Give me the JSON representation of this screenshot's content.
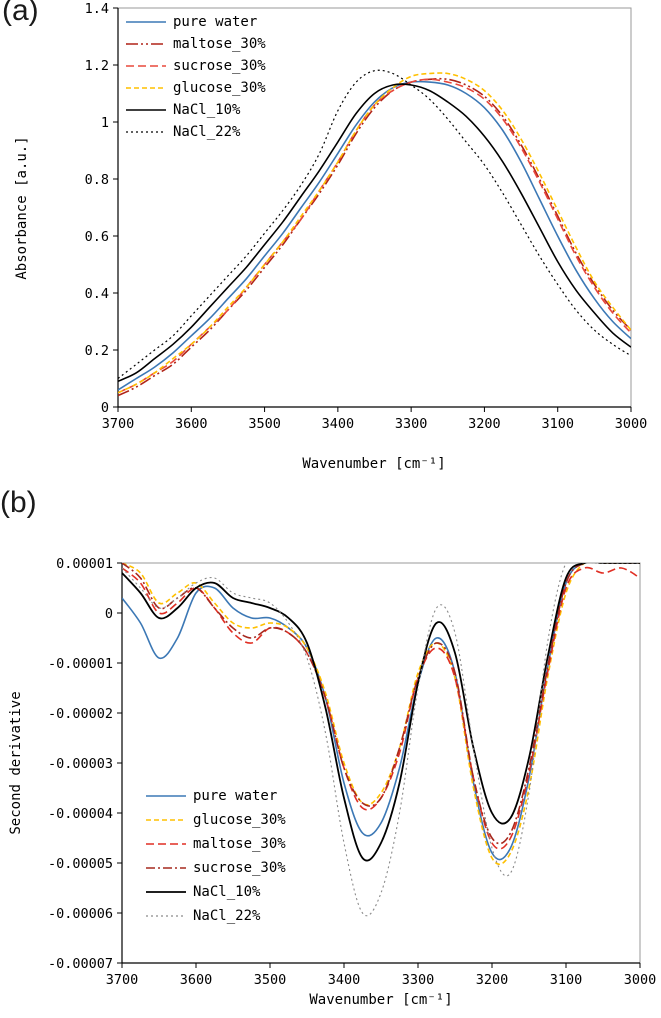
{
  "figure": {
    "background": "#ffffff",
    "panel_a_label": "(a)",
    "panel_b_label": "(b)"
  },
  "chart_data": [
    {
      "type": "line",
      "title": "(a)",
      "xlabel": "Wavenumber [cm⁻¹]",
      "ylabel": "Absorbance [a.u.]",
      "xlim": [
        3700,
        3000
      ],
      "ylim": [
        0,
        1.4
      ],
      "xticks": [
        3700,
        3600,
        3500,
        3400,
        3300,
        3200,
        3100,
        3000
      ],
      "yticks": [
        0,
        0.2,
        0.4,
        0.6,
        0.8,
        1,
        1.2,
        1.4
      ],
      "ytick_labels": [
        "0",
        "0.2",
        "0.4",
        "0.6",
        "0.8",
        "1",
        "1.2",
        "1.4"
      ],
      "legend_position": "top-left",
      "grid": false,
      "x": [
        3700,
        3675,
        3650,
        3625,
        3600,
        3575,
        3550,
        3525,
        3500,
        3475,
        3450,
        3425,
        3400,
        3375,
        3350,
        3325,
        3300,
        3275,
        3250,
        3225,
        3200,
        3175,
        3150,
        3125,
        3100,
        3075,
        3050,
        3025,
        3000
      ],
      "series": [
        {
          "name": "pure water",
          "color": "#3c78b5",
          "dash": "solid",
          "width": 1.6,
          "values": [
            0.06,
            0.1,
            0.14,
            0.19,
            0.25,
            0.31,
            0.38,
            0.45,
            0.53,
            0.61,
            0.7,
            0.79,
            0.89,
            0.99,
            1.07,
            1.12,
            1.14,
            1.14,
            1.13,
            1.1,
            1.05,
            0.97,
            0.86,
            0.73,
            0.6,
            0.48,
            0.38,
            0.3,
            0.24
          ]
        },
        {
          "name": "maltose_30%",
          "color": "#b02418",
          "dash": "dash-dot-dot",
          "width": 1.6,
          "values": [
            0.04,
            0.07,
            0.11,
            0.15,
            0.21,
            0.27,
            0.34,
            0.41,
            0.49,
            0.57,
            0.66,
            0.75,
            0.85,
            0.96,
            1.05,
            1.11,
            1.14,
            1.15,
            1.15,
            1.13,
            1.09,
            1.02,
            0.92,
            0.8,
            0.67,
            0.54,
            0.43,
            0.34,
            0.27
          ]
        },
        {
          "name": "sucrose_30%",
          "color": "#e8483c",
          "dash": "dash",
          "width": 1.6,
          "values": [
            0.05,
            0.08,
            0.12,
            0.16,
            0.22,
            0.28,
            0.34,
            0.42,
            0.5,
            0.58,
            0.66,
            0.76,
            0.86,
            0.97,
            1.06,
            1.11,
            1.14,
            1.15,
            1.14,
            1.12,
            1.08,
            1.01,
            0.91,
            0.79,
            0.66,
            0.53,
            0.42,
            0.33,
            0.26
          ]
        },
        {
          "name": "glucose_30%",
          "color": "#ffc000",
          "dash": "short-dash",
          "width": 1.6,
          "values": [
            0.05,
            0.08,
            0.12,
            0.17,
            0.22,
            0.28,
            0.35,
            0.42,
            0.5,
            0.58,
            0.67,
            0.76,
            0.86,
            0.97,
            1.06,
            1.12,
            1.16,
            1.17,
            1.17,
            1.15,
            1.11,
            1.04,
            0.94,
            0.82,
            0.69,
            0.56,
            0.44,
            0.35,
            0.27
          ]
        },
        {
          "name": "NaCl_10%",
          "color": "#000000",
          "dash": "solid",
          "width": 1.6,
          "values": [
            0.09,
            0.12,
            0.17,
            0.22,
            0.28,
            0.35,
            0.42,
            0.49,
            0.57,
            0.65,
            0.74,
            0.83,
            0.93,
            1.03,
            1.1,
            1.13,
            1.13,
            1.11,
            1.07,
            1.02,
            0.95,
            0.86,
            0.75,
            0.63,
            0.51,
            0.41,
            0.33,
            0.26,
            0.21
          ]
        },
        {
          "name": "NaCl_22%",
          "color": "#000000",
          "dash": "dot",
          "width": 1.2,
          "values": [
            0.1,
            0.15,
            0.2,
            0.25,
            0.32,
            0.39,
            0.46,
            0.53,
            0.61,
            0.69,
            0.78,
            0.89,
            1.04,
            1.14,
            1.18,
            1.17,
            1.13,
            1.08,
            1.01,
            0.93,
            0.85,
            0.75,
            0.64,
            0.53,
            0.43,
            0.34,
            0.27,
            0.22,
            0.18
          ]
        }
      ]
    },
    {
      "type": "line",
      "title": "(b)",
      "xlabel": "Wavenumber [cm⁻¹]",
      "ylabel": "Second derivative",
      "xlim": [
        3700,
        3000
      ],
      "ylim": [
        -7e-05,
        1e-05
      ],
      "xticks": [
        3700,
        3600,
        3500,
        3400,
        3300,
        3200,
        3100,
        3000
      ],
      "yticks": [
        1e-05,
        0,
        -1e-05,
        -2e-05,
        -3e-05,
        -4e-05,
        -5e-05,
        -6e-05,
        -7e-05
      ],
      "ytick_labels": [
        "0.00001",
        "0",
        "-0.00001",
        "-0.00002",
        "-0.00003",
        "-0.00004",
        "-0.00005",
        "-0.00006",
        "-0.00007"
      ],
      "legend_position": "bottom-left",
      "grid": false,
      "x": [
        3700,
        3675,
        3650,
        3625,
        3600,
        3575,
        3550,
        3525,
        3500,
        3475,
        3450,
        3425,
        3400,
        3375,
        3350,
        3325,
        3300,
        3275,
        3250,
        3225,
        3200,
        3175,
        3150,
        3125,
        3100,
        3075,
        3050,
        3025,
        3000
      ],
      "series": [
        {
          "name": "pure water",
          "color": "#3c78b5",
          "dash": "solid",
          "width": 1.6,
          "values": [
            3e-06,
            -2e-06,
            -9e-06,
            -5e-06,
            4e-06,
            5e-06,
            1e-06,
            -1e-06,
            -1e-06,
            -3e-06,
            -7e-06,
            -1.7e-05,
            -3.4e-05,
            -4.4e-05,
            -4.2e-05,
            -3.1e-05,
            -1.4e-05,
            -5e-06,
            -1.2e-05,
            -3.4e-05,
            -4.8e-05,
            -4.7e-05,
            -3.3e-05,
            -1.1e-05,
            6e-06,
            1e-05,
            1e-05,
            1e-05,
            1e-05
          ]
        },
        {
          "name": "glucose_30%",
          "color": "#ffc000",
          "dash": "short-dash",
          "width": 1.6,
          "values": [
            1e-05,
            8e-06,
            2e-06,
            4e-06,
            6e-06,
            2e-06,
            -2e-06,
            -3e-06,
            -2e-06,
            -3e-06,
            -7e-06,
            -1.6e-05,
            -3e-05,
            -3.8e-05,
            -3.6e-05,
            -2.7e-05,
            -1.2e-05,
            -6e-06,
            -1.3e-05,
            -3.5e-05,
            -4.9e-05,
            -4.8e-05,
            -3.5e-05,
            -1.3e-05,
            4e-06,
            1e-05,
            1e-05,
            1e-05,
            1e-05
          ]
        },
        {
          "name": "maltose_30%",
          "color": "#e02f24",
          "dash": "dash",
          "width": 1.6,
          "values": [
            9e-06,
            6e-06,
            0,
            2e-06,
            5e-06,
            1e-06,
            -4e-06,
            -6e-06,
            -3e-06,
            -4e-06,
            -8e-06,
            -1.7e-05,
            -3.1e-05,
            -3.9e-05,
            -3.7e-05,
            -2.8e-05,
            -1.3e-05,
            -7e-06,
            -1.3e-05,
            -3.3e-05,
            -4.6e-05,
            -4.5e-05,
            -3.2e-05,
            -1.2e-05,
            5e-06,
            9e-06,
            8e-06,
            9e-06,
            7e-06
          ]
        },
        {
          "name": "sucrose_30%",
          "color": "#a6281e",
          "dash": "dash-dot",
          "width": 1.6,
          "values": [
            1e-05,
            7e-06,
            1e-06,
            3e-06,
            5e-06,
            1e-06,
            -3e-06,
            -5e-06,
            -3e-06,
            -4e-06,
            -8e-06,
            -1.7e-05,
            -3.1e-05,
            -3.8e-05,
            -3.7e-05,
            -2.7e-05,
            -1.3e-05,
            -6e-06,
            -1.2e-05,
            -3.3e-05,
            -4.5e-05,
            -4.4e-05,
            -3.1e-05,
            -1.1e-05,
            6e-06,
            1e-05,
            1e-05,
            1e-05,
            1e-05
          ]
        },
        {
          "name": "NaCl_10%",
          "color": "#000000",
          "dash": "solid",
          "width": 1.8,
          "values": [
            8e-06,
            4e-06,
            -1e-06,
            1e-06,
            5e-06,
            6e-06,
            3e-06,
            2e-06,
            1e-06,
            -1e-06,
            -6e-06,
            -1.9e-05,
            -3.7e-05,
            -4.9e-05,
            -4.6e-05,
            -3.4e-05,
            -1.4e-05,
            -2e-06,
            -8e-06,
            -2.7e-05,
            -4e-05,
            -4.1e-05,
            -2.9e-05,
            -9e-06,
            7e-06,
            1e-05,
            1e-05,
            1e-05,
            1e-05
          ]
        },
        {
          "name": "NaCl_22%",
          "color": "#8a8a8a",
          "dash": "dot",
          "width": 1.1,
          "values": [
            9e-06,
            5e-06,
            1e-06,
            3e-06,
            6e-06,
            7e-06,
            4e-06,
            3e-06,
            2e-06,
            -2e-06,
            -9e-06,
            -2.4e-05,
            -4.6e-05,
            -6e-05,
            -5.6e-05,
            -4e-05,
            -1.5e-05,
            1e-06,
            -4e-06,
            -2.7e-05,
            -4.7e-05,
            -5.2e-05,
            -3.6e-05,
            -6e-06,
            1e-05,
            1e-05,
            1e-05,
            1e-05,
            1e-05
          ]
        }
      ]
    }
  ]
}
